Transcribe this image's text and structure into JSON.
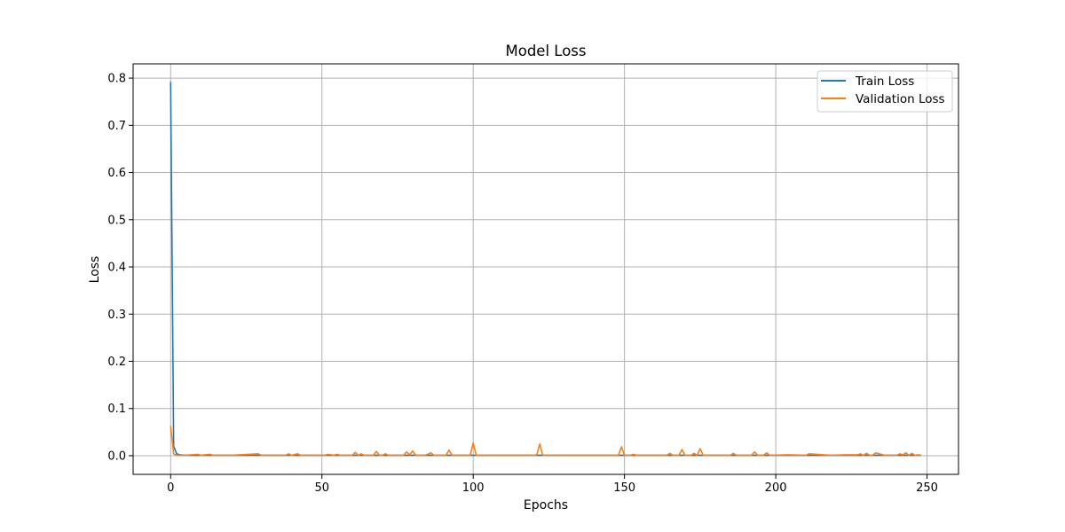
{
  "chart_data": {
    "type": "line",
    "title": "Model Loss",
    "xlabel": "Epochs",
    "ylabel": "Loss",
    "xlim": [
      -12.4,
      260.4
    ],
    "ylim": [
      -0.0395,
      0.8302
    ],
    "x_ticks": [
      0,
      50,
      100,
      150,
      200,
      250
    ],
    "y_ticks": [
      0.0,
      0.1,
      0.2,
      0.3,
      0.4,
      0.5,
      0.6,
      0.7,
      0.8
    ],
    "grid": true,
    "legend_position": "top-right",
    "colors": {
      "train": "#1f77b4",
      "validation": "#ff7f0e",
      "grid": "#b0b0b0"
    },
    "series": [
      {
        "name": "Train Loss",
        "color": "#1f77b4",
        "x": [
          0,
          1,
          2,
          3,
          5,
          10,
          20,
          30,
          40,
          50,
          60,
          70,
          80,
          90,
          100,
          110,
          120,
          130,
          140,
          150,
          160,
          170,
          180,
          190,
          200,
          210,
          220,
          230,
          240,
          248
        ],
        "y": [
          0.792,
          0.02,
          0.004,
          0.002,
          0.001,
          0.001,
          0.001,
          0.001,
          0.001,
          0.001,
          0.001,
          0.001,
          0.001,
          0.001,
          0.001,
          0.001,
          0.001,
          0.001,
          0.001,
          0.001,
          0.001,
          0.001,
          0.001,
          0.001,
          0.001,
          0.001,
          0.001,
          0.001,
          0.001,
          0.001
        ]
      },
      {
        "name": "Validation Loss",
        "color": "#ff7f0e",
        "x": [
          0,
          1,
          2,
          5,
          9,
          10,
          13,
          14,
          20,
          29,
          30,
          38,
          39,
          40,
          42,
          43,
          51,
          52,
          54,
          55,
          56,
          60,
          61,
          62,
          63,
          64,
          67,
          68,
          69,
          70,
          71,
          72,
          77,
          78,
          79,
          80,
          81,
          84,
          85,
          86,
          87,
          91,
          92,
          93,
          99,
          100,
          101,
          110,
          120,
          121,
          122,
          123,
          130,
          135,
          140,
          145,
          148,
          149,
          150,
          152,
          153,
          154,
          158,
          160,
          164,
          165,
          166,
          168,
          169,
          170,
          172,
          173,
          174,
          175,
          176,
          185,
          186,
          187,
          192,
          193,
          194,
          196,
          197,
          198,
          204,
          210,
          211,
          218,
          223,
          227,
          228,
          229,
          230,
          231,
          232,
          233,
          236,
          240,
          241,
          242,
          243,
          244,
          245,
          246,
          247,
          248
        ],
        "y": [
          0.063,
          0.004,
          0.001,
          0.001,
          0.003,
          0.001,
          0.003,
          0.001,
          0.001,
          0.004,
          0.001,
          0.001,
          0.004,
          0.001,
          0.004,
          0.001,
          0.001,
          0.003,
          0.001,
          0.003,
          0.001,
          0.001,
          0.007,
          0.001,
          0.004,
          0.001,
          0.001,
          0.009,
          0.001,
          0.001,
          0.004,
          0.001,
          0.001,
          0.008,
          0.002,
          0.01,
          0.001,
          0.001,
          0.003,
          0.006,
          0.001,
          0.001,
          0.012,
          0.001,
          0.001,
          0.027,
          0.001,
          0.001,
          0.001,
          0.002,
          0.025,
          0.001,
          0.001,
          0.001,
          0.001,
          0.001,
          0.001,
          0.019,
          0.001,
          0.001,
          0.003,
          0.001,
          0.001,
          0.001,
          0.001,
          0.005,
          0.001,
          0.001,
          0.013,
          0.001,
          0.001,
          0.005,
          0.001,
          0.015,
          0.001,
          0.001,
          0.005,
          0.001,
          0.001,
          0.008,
          0.001,
          0.001,
          0.006,
          0.001,
          0.002,
          0.001,
          0.004,
          0.001,
          0.002,
          0.002,
          0.004,
          0.001,
          0.005,
          0.001,
          0.001,
          0.006,
          0.001,
          0.001,
          0.004,
          0.002,
          0.006,
          0.001,
          0.005,
          0.001,
          0.002,
          0.001
        ]
      }
    ]
  }
}
